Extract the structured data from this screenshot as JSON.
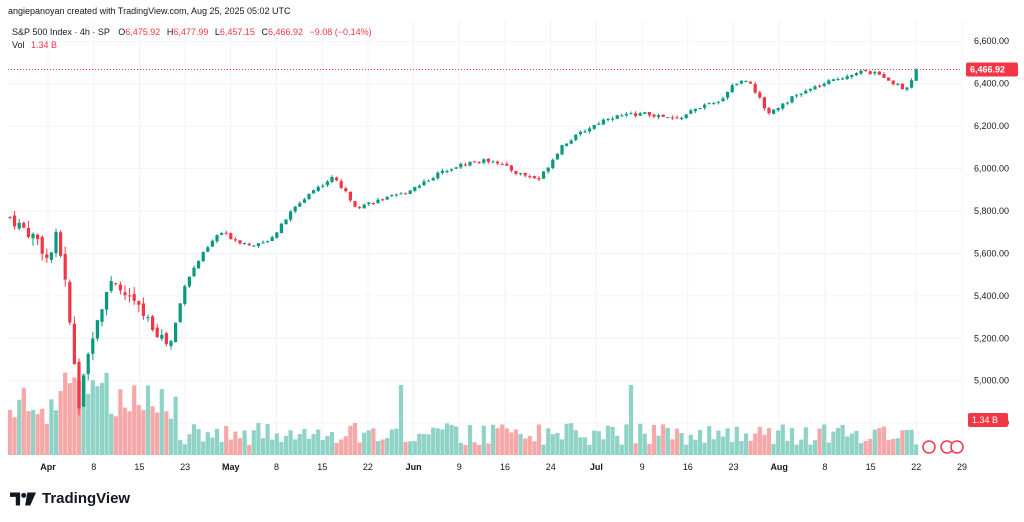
{
  "header": {
    "credit": "angiepanoyan created with TradingView.com, Aug 25, 2025 05:02 UTC",
    "symbol": "S&P 500 Index · 4h · SP",
    "o_label": "O",
    "o_value": "6,475.92",
    "h_label": "H",
    "h_value": "6,477.99",
    "l_label": "L",
    "l_value": "6,457.15",
    "c_label": "C",
    "c_value": "6,466.92",
    "change": "−9.08 (−0.14%)",
    "vol_label": "Vol",
    "vol_value": "1.34 B"
  },
  "brand": "TradingView",
  "colors": {
    "up": "#089981",
    "down": "#f23645",
    "up_vol": "#8fd3c7",
    "down_vol": "#f6a7a8"
  },
  "chart_data": {
    "type": "candlestick",
    "y_ticks": [
      "6,600.00",
      "6,400.00",
      "6,200.00",
      "6,000.00",
      "5,800.00",
      "5,600.00",
      "5,400.00",
      "5,200.00",
      "5,000.00",
      "4,800.00"
    ],
    "ylim": [
      4650,
      6700
    ],
    "x_ticks": [
      "Apr",
      "8",
      "15",
      "23",
      "May",
      "8",
      "15",
      "22",
      "Jun",
      "9",
      "16",
      "24",
      "Jul",
      "9",
      "16",
      "23",
      "Aug",
      "8",
      "15",
      "22",
      "29"
    ],
    "last_price_label": "6,466.92",
    "last_volume_label": "1.34 B",
    "anchors": [
      [
        "Apr",
        5770
      ],
      [
        "Apr",
        5660
      ],
      [
        "Apr",
        5560
      ],
      [
        "Apr",
        5690
      ],
      [
        "Apr",
        5430
      ],
      [
        "8",
        4880
      ],
      [
        "8",
        5250
      ],
      [
        "8",
        5450
      ],
      [
        "15",
        5400
      ],
      [
        "15",
        5270
      ],
      [
        "23",
        5160
      ],
      [
        "23",
        5460
      ],
      [
        "23",
        5580
      ],
      [
        "May",
        5700
      ],
      [
        "May",
        5650
      ],
      [
        "8",
        5640
      ],
      [
        "8",
        5700
      ],
      [
        "8",
        5800
      ],
      [
        "15",
        5890
      ],
      [
        "15",
        5960
      ],
      [
        "22",
        5820
      ],
      [
        "22",
        5850
      ],
      [
        "Jun",
        5880
      ],
      [
        "Jun",
        5940
      ],
      [
        "9",
        6000
      ],
      [
        "9",
        6030
      ],
      [
        "16",
        6040
      ],
      [
        "16",
        5980
      ],
      [
        "24",
        5950
      ],
      [
        "24",
        6110
      ],
      [
        "Jul",
        6180
      ],
      [
        "Jul",
        6240
      ],
      [
        "9",
        6260
      ],
      [
        "16",
        6230
      ],
      [
        "16",
        6290
      ],
      [
        "23",
        6310
      ],
      [
        "23",
        6400
      ],
      [
        "23",
        6420
      ],
      [
        "Aug",
        6260
      ],
      [
        "Aug",
        6330
      ],
      [
        "8",
        6380
      ],
      [
        "8",
        6420
      ],
      [
        "15",
        6460
      ],
      [
        "15",
        6440
      ],
      [
        "22",
        6370
      ],
      [
        "22",
        6467
      ]
    ]
  }
}
